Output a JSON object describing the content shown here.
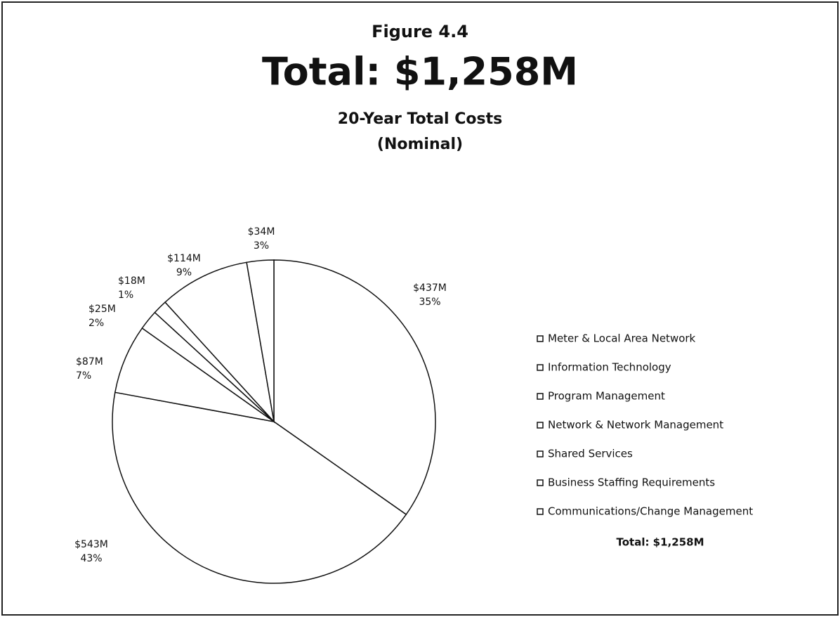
{
  "chart_data": {
    "type": "pie",
    "figure_label": "Figure 4.4",
    "title": "Total: $1,258M",
    "subtitle": "20-Year Total Costs",
    "subtitle2": "(Nominal)",
    "categories": [
      "Meter & Local Area Network",
      "Information Technology",
      "Program Management",
      "Network & Network Management",
      "Shared Services",
      "Business Staffing Requirements",
      "Communications/Change Management"
    ],
    "values": [
      437,
      543,
      87,
      25,
      18,
      114,
      34
    ],
    "value_labels": [
      "$437M",
      "$543M",
      "$87M",
      "$25M",
      "$18M",
      "$114M",
      "$34M"
    ],
    "percent_labels": [
      "35%",
      "43%",
      "7%",
      "2%",
      "1%",
      "9%",
      "3%"
    ],
    "color": "#ffffff",
    "legend": "right",
    "legend_total": "Total: $1,258M"
  }
}
